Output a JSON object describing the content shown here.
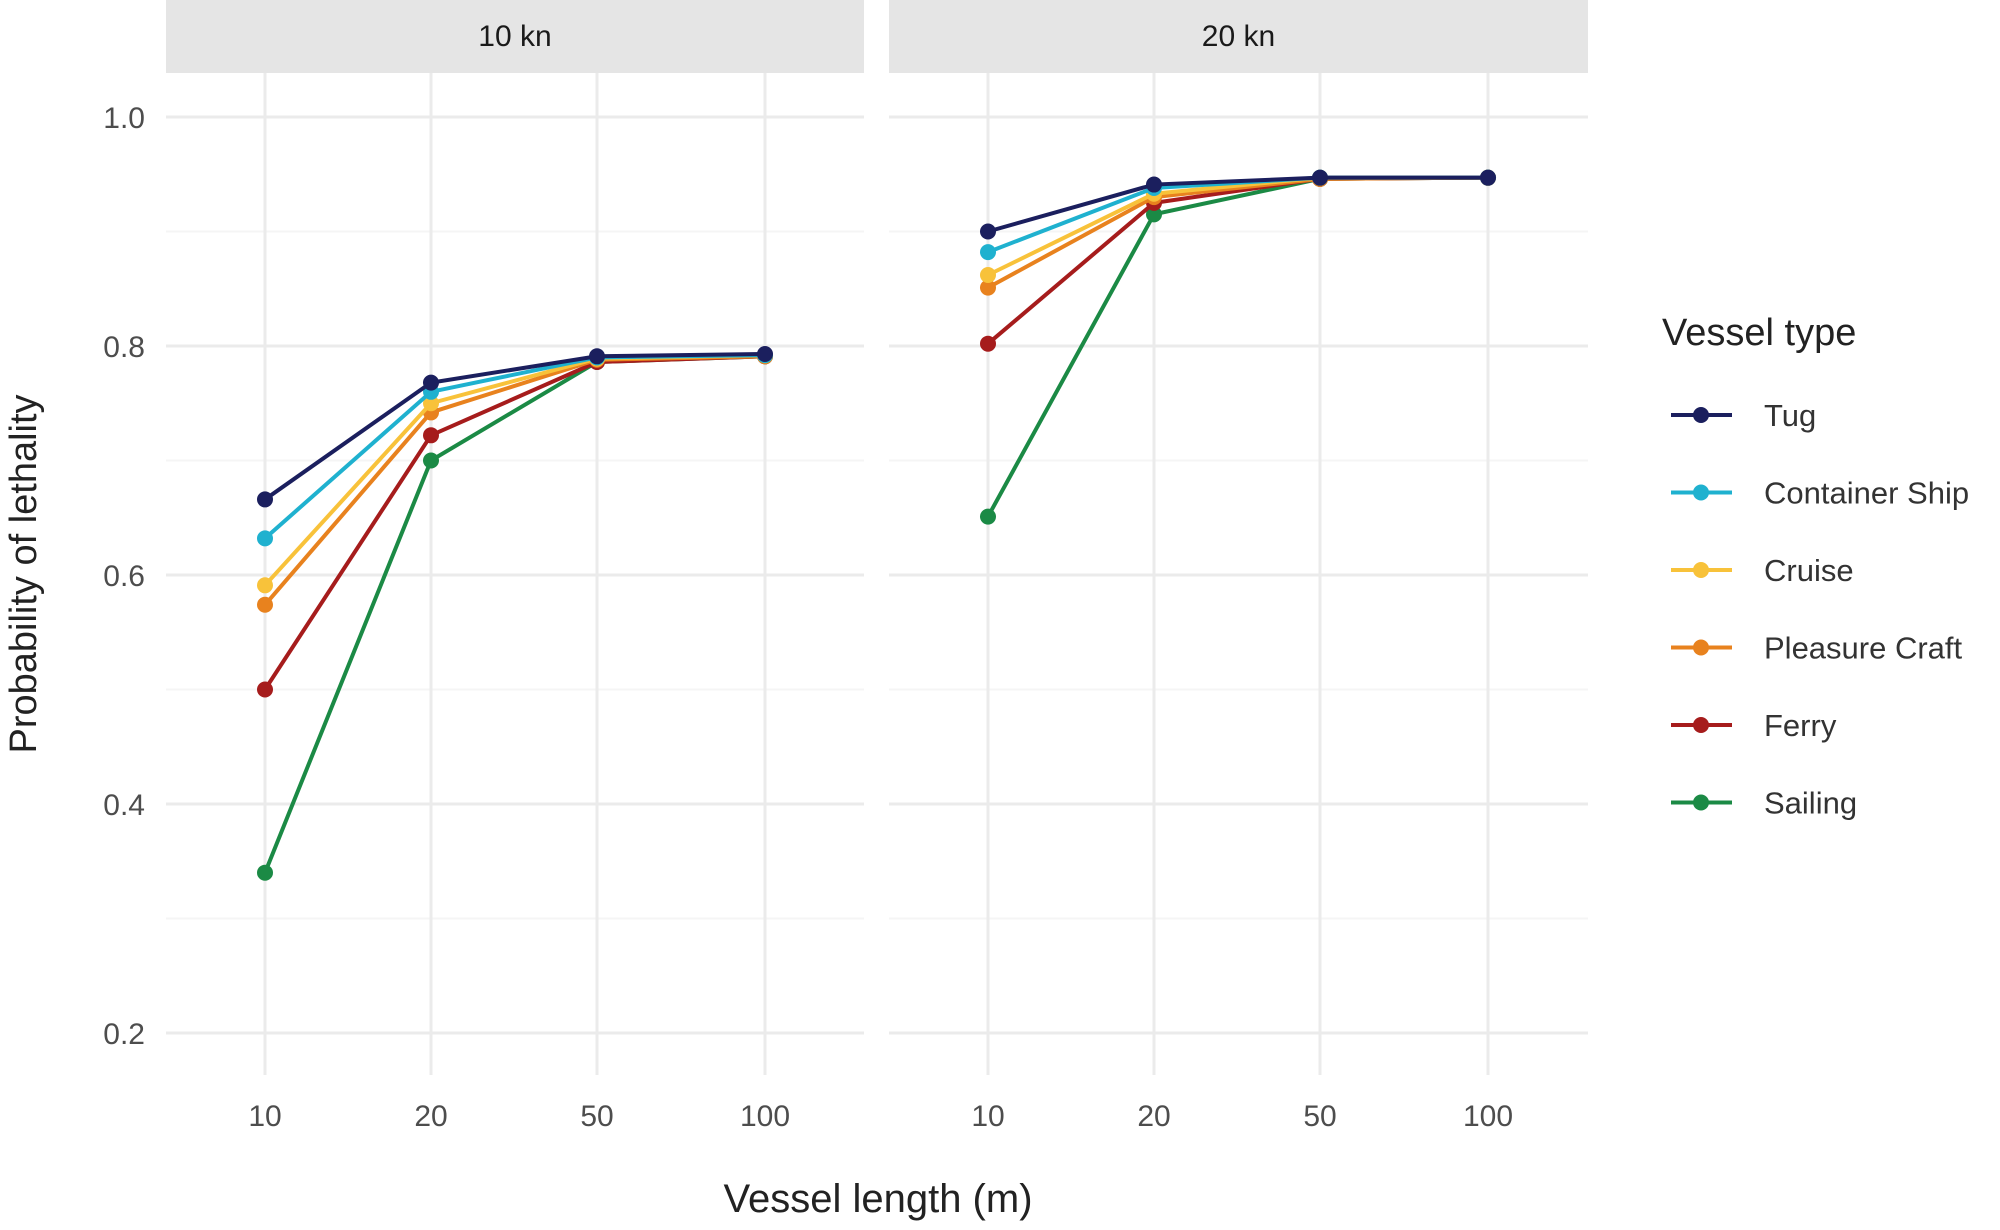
{
  "chart_data": {
    "type": "line",
    "facet_variable": "Speed",
    "facets": [
      "10 kn",
      "20 kn"
    ],
    "categories": [
      "10",
      "20",
      "50",
      "100"
    ],
    "xlabel": "Vessel length (m)",
    "ylabel": "Probability of lethality",
    "ylim": [
      0.2,
      1.0
    ],
    "yticks": [
      "0.2",
      "0.4",
      "0.6",
      "0.8",
      "1.0"
    ],
    "grid": true,
    "legend": {
      "title": "Vessel type",
      "placement": "right"
    },
    "series": [
      {
        "name": "Tug",
        "color": "#1b1f5e",
        "values": {
          "10 kn": [
            0.666,
            0.768,
            0.791,
            0.793
          ],
          "20 kn": [
            0.9,
            0.941,
            0.947,
            0.947
          ]
        }
      },
      {
        "name": "Container Ship",
        "color": "#1fb1cf",
        "values": {
          "10 kn": [
            0.632,
            0.76,
            0.79,
            0.792
          ],
          "20 kn": [
            0.882,
            0.938,
            0.947,
            0.947
          ]
        }
      },
      {
        "name": "Cruise",
        "color": "#f8c23a",
        "values": {
          "10 kn": [
            0.591,
            0.75,
            0.789,
            0.792
          ],
          "20 kn": [
            0.862,
            0.933,
            0.947,
            0.947
          ]
        }
      },
      {
        "name": "Pleasure Craft",
        "color": "#e8821e",
        "values": {
          "10 kn": [
            0.574,
            0.742,
            0.788,
            0.791
          ],
          "20 kn": [
            0.851,
            0.93,
            0.946,
            0.947
          ]
        }
      },
      {
        "name": "Ferry",
        "color": "#a61c1c",
        "values": {
          "10 kn": [
            0.5,
            0.722,
            0.786,
            0.791
          ],
          "20 kn": [
            0.802,
            0.925,
            0.946,
            0.947
          ]
        }
      },
      {
        "name": "Sailing",
        "color": "#1b8a45",
        "values": {
          "10 kn": [
            0.34,
            0.7,
            0.786,
            0.791
          ],
          "20 kn": [
            0.651,
            0.915,
            0.946,
            0.947
          ]
        }
      }
    ]
  }
}
